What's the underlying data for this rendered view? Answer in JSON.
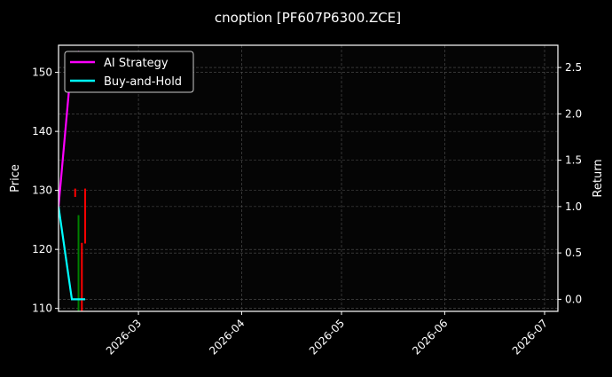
{
  "chart_data": {
    "type": "line",
    "title": "cnoption [PF607P6300.ZCE]",
    "ylabel": "Price",
    "y2label": "Return",
    "xlim": [
      "2026-02-05",
      "2026-07-05"
    ],
    "ylim": [
      109.5,
      154.6
    ],
    "y2lim": [
      -0.13,
      2.74
    ],
    "xticks": [
      "2026-03-01",
      "2026-04-01",
      "2026-05-01",
      "2026-06-01",
      "2026-07-01"
    ],
    "xtick_labels": [
      "2026-03",
      "2026-04",
      "2026-05",
      "2026-06",
      "2026-07"
    ],
    "yticks": [
      110,
      120,
      130,
      140,
      150
    ],
    "y2ticks": [
      0.0,
      0.5,
      1.0,
      1.5,
      2.0,
      2.5
    ],
    "y2tick_labels": [
      "0.0",
      "0.5",
      "1.0",
      "1.5",
      "2.0",
      "2.5"
    ],
    "grid": true,
    "legend_placement": "top-left",
    "series": [
      {
        "name": "AI Strategy",
        "axis": "right",
        "color": "#ff00ff",
        "x": [
          "2026-02-05",
          "2026-02-09",
          "2026-02-10",
          "2026-02-11",
          "2026-02-12",
          "2026-02-13"
        ],
        "values": [
          1.0,
          2.6,
          2.55,
          2.65,
          2.5,
          2.6
        ]
      },
      {
        "name": "Buy-and-Hold",
        "axis": "right",
        "color": "#00ffff",
        "x": [
          "2026-02-05",
          "2026-02-09",
          "2026-02-10",
          "2026-02-11",
          "2026-02-12",
          "2026-02-13"
        ],
        "values": [
          1.0,
          0.0,
          0.0,
          0.0,
          0.0,
          0.0
        ]
      }
    ],
    "candles": [
      {
        "date": "2026-02-10",
        "open": 130.3,
        "close": 128.9,
        "high": 130.3,
        "low": 128.9,
        "color": "#ff0000"
      },
      {
        "date": "2026-02-11",
        "open": 109.0,
        "close": 125.8,
        "high": 125.8,
        "low": 109.0,
        "color": "#008000"
      },
      {
        "date": "2026-02-12",
        "open": 121.1,
        "close": 109.0,
        "high": 121.1,
        "low": 109.0,
        "color": "#ff0000"
      },
      {
        "date": "2026-02-13",
        "open": 130.3,
        "close": 121.0,
        "high": 130.3,
        "low": 121.0,
        "color": "#ff0000"
      }
    ]
  }
}
